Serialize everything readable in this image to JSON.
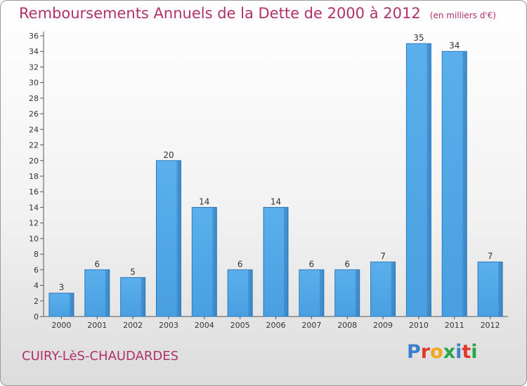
{
  "chart_data": {
    "type": "bar",
    "title": "Remboursements Annuels de la Dette de 2000 à 2012",
    "unit_note": "(en milliers d'€)",
    "categories": [
      "2000",
      "2001",
      "2002",
      "2003",
      "2004",
      "2005",
      "2006",
      "2007",
      "2008",
      "2009",
      "2010",
      "2011",
      "2012"
    ],
    "values": [
      3,
      6,
      5,
      20,
      14,
      6,
      14,
      6,
      6,
      7,
      35,
      34,
      7
    ],
    "ylim": [
      0,
      36
    ],
    "yticks": [
      0,
      2,
      4,
      6,
      8,
      10,
      12,
      14,
      16,
      18,
      20,
      22,
      24,
      26,
      28,
      30,
      32,
      34,
      36
    ],
    "grid": false,
    "bar_color": "#4a9fe0"
  },
  "footer": {
    "city": "CUIRY-LèS-CHAUDARDES",
    "logo": "Proxiti"
  }
}
